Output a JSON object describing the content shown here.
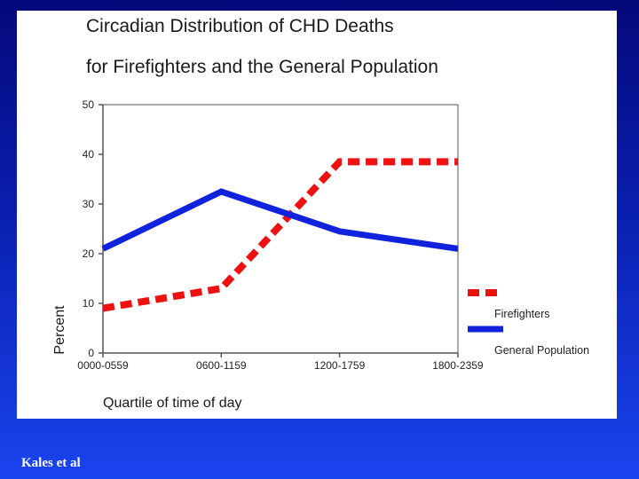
{
  "chart_data": {
    "type": "line",
    "title": "Circadian Distribution of CHD Deaths",
    "subtitle": "for Firefighters and the General Population",
    "xlabel": "Quartile of time of day",
    "ylabel": "Percent",
    "categories": [
      "0000-0559",
      "0600-1159",
      "1200-1759",
      "1800-2359"
    ],
    "ylim": [
      0,
      50
    ],
    "yticks": [
      0,
      10,
      20,
      30,
      40,
      50
    ],
    "series": [
      {
        "name": "Firefighters",
        "values": [
          9,
          13,
          38.5,
          38.5
        ],
        "color": "#ee1111",
        "style": "dashed"
      },
      {
        "name": "General Population",
        "values": [
          21,
          32.5,
          24.5,
          21
        ],
        "color": "#1122dd",
        "style": "solid"
      }
    ],
    "legend_position": "right"
  },
  "credit": "Kales et al"
}
